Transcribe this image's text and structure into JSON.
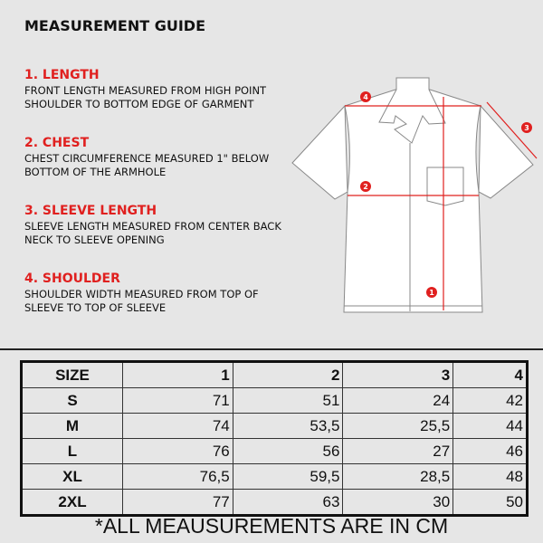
{
  "title": "MEASUREMENT GUIDE",
  "guide": [
    {
      "num": "1",
      "heading": "1. LENGTH",
      "desc": "FRONT LENGTH MEASURED FROM HIGH POINT SHOULDER TO BOTTOM EDGE OF GARMENT"
    },
    {
      "num": "2",
      "heading": "2. CHEST",
      "desc": "CHEST CIRCUMFERENCE MEASURED 1\" BELOW BOTTOM OF THE ARMHOLE"
    },
    {
      "num": "3",
      "heading": "3. SLEEVE LENGTH",
      "desc": "SLEEVE LENGTH MEASURED FROM CENTER BACK NECK TO SLEEVE OPENING"
    },
    {
      "num": "4",
      "heading": "4. SHOULDER",
      "desc": "SHOULDER WIDTH MEASURED FROM TOP OF SLEEVE TO TOP OF SLEEVE"
    }
  ],
  "table": {
    "headers": [
      "SIZE",
      "1",
      "2",
      "3",
      "4"
    ],
    "rows": [
      [
        "S",
        "71",
        "51",
        "24",
        "42"
      ],
      [
        "M",
        "74",
        "53,5",
        "25,5",
        "44"
      ],
      [
        "L",
        "76",
        "56",
        "27",
        "46"
      ],
      [
        "XL",
        "76,5",
        "59,5",
        "28,5",
        "48"
      ],
      [
        "2XL",
        "77",
        "63",
        "30",
        "50"
      ]
    ]
  },
  "note": "*ALL MEAUSUREMENTS ARE IN CM",
  "colors": {
    "accent": "#e0201f",
    "background": "#e6e6e6"
  }
}
